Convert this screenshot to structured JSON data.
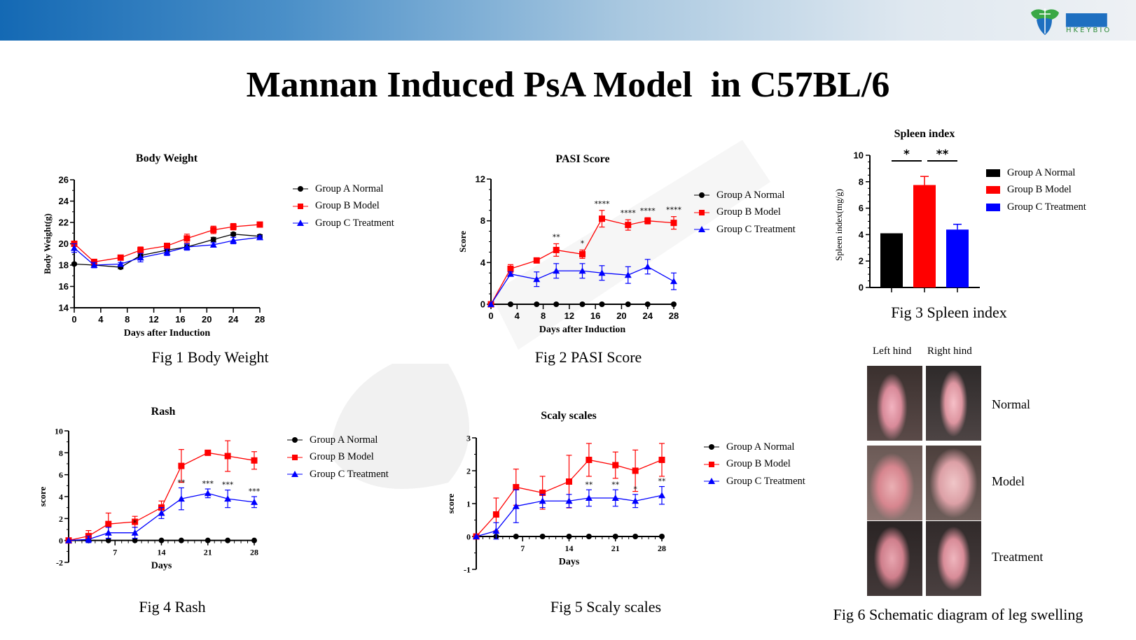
{
  "header": {
    "logo_text": "禾开生物",
    "logo_sub": "HKEYBIO",
    "accent_color": "#1469b4"
  },
  "title": "Mannan Induced PsA Model  in C57BL/6",
  "legend_labels": [
    "Group A Normal",
    "Group B Model",
    "Group C Treatment"
  ],
  "series_colors": {
    "Group A Normal": "#000000",
    "Group B Model": "#ff0000",
    "Group C Treatment": "#0000ff"
  },
  "figures": {
    "fig1_caption": "Fig 1 Body Weight",
    "fig2_caption": "Fig 2 PASI Score",
    "fig3_caption": "Fig 3 Spleen index",
    "fig4_caption": "Fig 4 Rash",
    "fig5_caption": "Fig 5 Scaly scales",
    "fig6_caption": "Fig 6 Schematic diagram of leg swelling",
    "fig6": {
      "col_labels": [
        "Left hind",
        "Right hind"
      ],
      "row_labels": [
        "Normal",
        "Model",
        "Treatment"
      ]
    }
  },
  "chart_data": [
    {
      "type": "line",
      "title": "Body Weight",
      "xlabel": "Days after Induction",
      "ylabel": "Body Weight(g)",
      "xlim": [
        0,
        28
      ],
      "ylim": [
        14,
        26
      ],
      "xticks": [
        "0",
        "4",
        "8",
        "12",
        "16",
        "20",
        "24",
        "28"
      ],
      "yticks": [
        "14",
        "16",
        "18",
        "20",
        "22",
        "24",
        "26"
      ],
      "x": [
        0,
        3,
        7,
        10,
        14,
        17,
        21,
        24,
        28
      ],
      "series": [
        {
          "name": "Group A Normal",
          "values": [
            18.1,
            18.0,
            17.8,
            18.9,
            19.4,
            19.7,
            20.4,
            20.9,
            20.7
          ],
          "errors": [
            0.1,
            0.1,
            0.15,
            0.2,
            0.2,
            0.2,
            0.2,
            0.15,
            0.15
          ]
        },
        {
          "name": "Group B Model",
          "values": [
            20.0,
            18.3,
            18.7,
            19.4,
            19.8,
            20.5,
            21.3,
            21.6,
            21.8
          ],
          "errors": [
            0.2,
            0.15,
            0.2,
            0.3,
            0.25,
            0.4,
            0.35,
            0.3,
            0.15
          ]
        },
        {
          "name": "Group C Treatment",
          "values": [
            19.6,
            18.0,
            18.1,
            18.7,
            19.2,
            19.7,
            19.9,
            20.3,
            20.6
          ],
          "errors": [
            0.4,
            0.25,
            0.15,
            0.4,
            0.3,
            0.3,
            0.2,
            0.3,
            0.15
          ]
        }
      ],
      "annotations": [],
      "legend": "right"
    },
    {
      "type": "line",
      "title": "PASI Score",
      "xlabel": "Days after Induction",
      "ylabel": "Score",
      "xlim": [
        0,
        28
      ],
      "ylim": [
        0,
        12
      ],
      "xticks": [
        "0",
        "4",
        "8",
        "12",
        "16",
        "20",
        "24",
        "28"
      ],
      "yticks": [
        "0",
        "4",
        "8",
        "12"
      ],
      "x": [
        0,
        3,
        7,
        10,
        14,
        17,
        21,
        24,
        28
      ],
      "series": [
        {
          "name": "Group A Normal",
          "values": [
            0,
            0,
            0,
            0,
            0,
            0,
            0,
            0,
            0
          ],
          "errors": [
            0,
            0,
            0,
            0,
            0,
            0,
            0,
            0,
            0
          ]
        },
        {
          "name": "Group B Model",
          "values": [
            0,
            3.4,
            4.2,
            5.2,
            4.8,
            8.2,
            7.6,
            8.0,
            7.8
          ],
          "errors": [
            0,
            0.4,
            0.2,
            0.6,
            0.4,
            0.8,
            0.5,
            0.3,
            0.6
          ]
        },
        {
          "name": "Group C Treatment",
          "values": [
            0,
            2.9,
            2.4,
            3.2,
            3.2,
            3.0,
            2.8,
            3.6,
            2.2
          ],
          "errors": [
            0,
            0.2,
            0.7,
            0.7,
            0.7,
            0.7,
            0.8,
            0.7,
            0.8
          ]
        }
      ],
      "annotations": [
        {
          "x": 10,
          "label": "**"
        },
        {
          "x": 14,
          "label": "*"
        },
        {
          "x": 17,
          "label": "****"
        },
        {
          "x": 21,
          "label": "****"
        },
        {
          "x": 24,
          "label": "****"
        },
        {
          "x": 28,
          "label": "****"
        }
      ],
      "legend": "right"
    },
    {
      "type": "bar",
      "title": "Spleen index",
      "ylabel": "Spleen index(mg/g)",
      "ylim": [
        0,
        10
      ],
      "yticks": [
        "0",
        "2",
        "4",
        "6",
        "8",
        "10"
      ],
      "categories": [
        "Group A Normal",
        "Group B Model",
        "Group C Treatment"
      ],
      "values": [
        4.1,
        7.75,
        4.38
      ],
      "errors": [
        0,
        0.65,
        0.4
      ],
      "significance": [
        {
          "between": [
            "Group A Normal",
            "Group B Model"
          ],
          "label": "*"
        },
        {
          "between": [
            "Group B Model",
            "Group C Treatment"
          ],
          "label": "**"
        }
      ],
      "legend": "right"
    },
    {
      "type": "line",
      "title": "Rash",
      "xlabel": "Days",
      "ylabel": "score",
      "xlim": [
        0,
        28
      ],
      "ylim": [
        -2,
        10
      ],
      "xticks": [
        "7",
        "14",
        "21",
        "28"
      ],
      "yticks": [
        "-2",
        "0",
        "2",
        "4",
        "6",
        "8",
        "10"
      ],
      "x": [
        0,
        3,
        6,
        10,
        14,
        17,
        21,
        24,
        28
      ],
      "series": [
        {
          "name": "Group A Normal",
          "values": [
            0,
            0,
            0,
            0,
            0,
            0,
            0,
            0,
            0
          ],
          "errors": [
            0,
            0,
            0,
            0,
            0,
            0,
            0,
            0,
            0
          ]
        },
        {
          "name": "Group B Model",
          "values": [
            0,
            0.4,
            1.5,
            1.7,
            3.0,
            6.8,
            8.0,
            7.7,
            7.3
          ],
          "errors": [
            0,
            0.5,
            1.0,
            0.5,
            0.6,
            1.5,
            0.1,
            1.4,
            0.8
          ]
        },
        {
          "name": "Group C Treatment",
          "values": [
            0,
            0.1,
            0.7,
            0.7,
            2.5,
            3.8,
            4.3,
            3.8,
            3.5
          ],
          "errors": [
            0,
            0.3,
            0.5,
            0.5,
            0.5,
            1.0,
            0.4,
            0.8,
            0.5
          ]
        }
      ],
      "annotations": [
        {
          "x": 10,
          "label": "*"
        },
        {
          "x": 17,
          "label": "**"
        },
        {
          "x": 21,
          "label": "***"
        },
        {
          "x": 24,
          "label": "***"
        },
        {
          "x": 28,
          "label": "***"
        }
      ],
      "legend": "right"
    },
    {
      "type": "line",
      "title": "Scaly scales",
      "xlabel": "Days",
      "ylabel": "score",
      "xlim": [
        0,
        28
      ],
      "ylim": [
        -1,
        3
      ],
      "xticks": [
        "7",
        "14",
        "21",
        "28"
      ],
      "yticks": [
        "-1",
        "0",
        "1",
        "2",
        "3"
      ],
      "x": [
        0,
        3,
        6,
        10,
        14,
        17,
        21,
        24,
        28
      ],
      "series": [
        {
          "name": "Group A Normal",
          "values": [
            0,
            0,
            0,
            0,
            0,
            0,
            0,
            0,
            0
          ],
          "errors": [
            0,
            0,
            0,
            0,
            0,
            0,
            0,
            0,
            0
          ]
        },
        {
          "name": "Group B Model",
          "values": [
            0,
            0.67,
            1.5,
            1.33,
            1.67,
            2.33,
            2.17,
            2.0,
            2.33
          ],
          "errors": [
            0,
            0.5,
            0.55,
            0.5,
            0.8,
            0.5,
            0.4,
            0.63,
            0.5
          ]
        },
        {
          "name": "Group C Treatment",
          "values": [
            0,
            0.17,
            0.92,
            1.08,
            1.08,
            1.17,
            1.17,
            1.08,
            1.25
          ],
          "errors": [
            0,
            0.25,
            0.5,
            0.2,
            0.2,
            0.25,
            0.25,
            0.2,
            0.27
          ]
        }
      ],
      "annotations": [
        {
          "x": 17,
          "label": "**"
        },
        {
          "x": 21,
          "label": "**"
        },
        {
          "x": 24,
          "label": "*"
        },
        {
          "x": 28,
          "label": "**"
        }
      ],
      "legend": "right"
    }
  ]
}
